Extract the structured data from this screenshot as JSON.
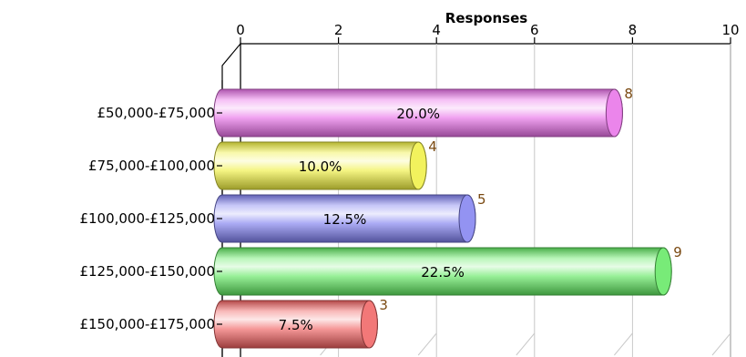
{
  "chart_data": {
    "type": "bar",
    "orientation": "horizontal",
    "style": "3d-cylinder",
    "title": "",
    "xlabel": "Responses",
    "ylabel": "",
    "xlim": [
      0,
      10
    ],
    "ticks": [
      0,
      2,
      4,
      6,
      8,
      10
    ],
    "grid": true,
    "legend": "none",
    "categories": [
      "£50,000-£75,000",
      "£75,000-£100,000",
      "£100,000-£125,000",
      "£125,000-£150,000",
      "£150,000-£175,000"
    ],
    "values": [
      8,
      4,
      5,
      9,
      3
    ],
    "value_labels": [
      "8",
      "4",
      "5",
      "9",
      "3"
    ],
    "percent_labels": [
      "20.0%",
      "10.0%",
      "12.5%",
      "22.5%",
      "7.5%"
    ],
    "colors": [
      "#e870e8",
      "#f0f040",
      "#8080f0",
      "#60e860",
      "#f06060"
    ]
  }
}
